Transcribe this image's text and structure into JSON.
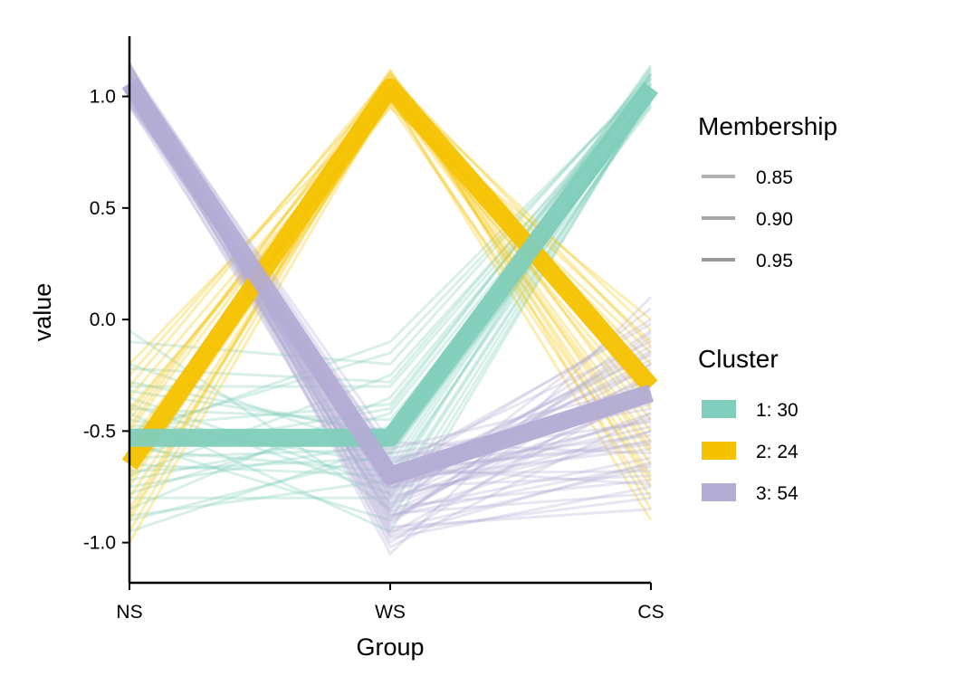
{
  "chart_data": {
    "type": "line",
    "categories": [
      "NS",
      "WS",
      "CS"
    ],
    "xlabel": "Group",
    "ylabel": "value",
    "ylim": [
      -1.18,
      1.27
    ],
    "yticks": [
      -1.0,
      -0.5,
      0.0,
      0.5,
      1.0
    ],
    "ytick_labels": [
      "-1.0",
      "-0.5",
      "0.0",
      "0.5",
      "1.0"
    ],
    "grid": false,
    "legend_position": "right",
    "membership_legend": {
      "title": "Membership",
      "entries": [
        "0.85",
        "0.90",
        "0.95"
      ],
      "colors": [
        "#b3b3b3",
        "#a6a6a6",
        "#999999"
      ]
    },
    "cluster_legend": {
      "title": "Cluster",
      "entries": [
        "1: 30",
        "2: 24",
        "3: 54"
      ]
    },
    "series": [
      {
        "name": "1: 30",
        "color": "#7fcdbb",
        "count": 30,
        "centroid": [
          -0.53,
          -0.53,
          1.04
        ],
        "profile": [
          [
            -0.05,
            -0.85,
            1.0
          ],
          [
            -0.1,
            -0.2,
            1.1
          ],
          [
            -0.2,
            -0.6,
            0.95
          ],
          [
            -0.3,
            -0.3,
            1.05
          ],
          [
            -0.35,
            -0.75,
            1.1
          ],
          [
            -0.4,
            -0.45,
            0.98
          ],
          [
            -0.45,
            -0.65,
            1.03
          ],
          [
            -0.5,
            -0.15,
            1.08
          ],
          [
            -0.55,
            -0.9,
            1.0
          ],
          [
            -0.6,
            -0.4,
            1.12
          ],
          [
            -0.65,
            -0.7,
            0.97
          ],
          [
            -0.7,
            -0.25,
            1.05
          ],
          [
            -0.75,
            -0.55,
            1.1
          ],
          [
            -0.8,
            -0.8,
            1.0
          ],
          [
            -0.85,
            -0.35,
            1.06
          ],
          [
            -0.9,
            -0.6,
            0.99
          ],
          [
            -0.32,
            -0.5,
            1.14
          ],
          [
            -0.42,
            -0.95,
            1.02
          ],
          [
            -0.52,
            -0.1,
            1.07
          ],
          [
            -0.62,
            -0.58,
            1.11
          ],
          [
            -0.72,
            -0.48,
            0.96
          ],
          [
            -0.58,
            -0.68,
            1.04
          ],
          [
            -0.48,
            -0.38,
            1.09
          ],
          [
            -0.38,
            -0.78,
            1.0
          ],
          [
            -0.28,
            -0.52,
            1.13
          ],
          [
            -0.68,
            -0.62,
            1.01
          ],
          [
            -0.78,
            -0.42,
            1.06
          ],
          [
            -0.88,
            -0.72,
            1.03
          ],
          [
            -0.22,
            -0.28,
            1.08
          ],
          [
            -0.95,
            -0.56,
            1.0
          ]
        ]
      },
      {
        "name": "2: 24",
        "color": "#f5c200",
        "count": 24,
        "centroid": [
          -0.65,
          1.04,
          -0.3
        ],
        "profile": [
          [
            -0.2,
            1.0,
            -0.1
          ],
          [
            -0.3,
            1.1,
            -0.5
          ],
          [
            -0.4,
            0.95,
            0.0
          ],
          [
            -0.5,
            1.05,
            -0.7
          ],
          [
            -0.6,
            1.0,
            -0.2
          ],
          [
            -0.7,
            1.12,
            -0.85
          ],
          [
            -0.8,
            0.98,
            -0.4
          ],
          [
            -0.9,
            1.06,
            -0.05
          ],
          [
            -1.0,
            1.0,
            -0.6
          ],
          [
            -0.35,
            1.02,
            -0.3
          ],
          [
            -0.45,
            1.08,
            -0.75
          ],
          [
            -0.55,
            0.97,
            -0.15
          ],
          [
            -0.65,
            1.04,
            -0.55
          ],
          [
            -0.75,
            1.1,
            -0.25
          ],
          [
            -0.85,
            0.99,
            -0.8
          ],
          [
            -0.95,
            1.03,
            -0.35
          ],
          [
            -0.25,
            1.07,
            -0.65
          ],
          [
            -0.42,
            1.01,
            -0.45
          ],
          [
            -0.58,
            1.09,
            -0.12
          ],
          [
            -0.72,
            0.96,
            -0.72
          ],
          [
            -0.88,
            1.05,
            -0.28
          ],
          [
            -0.62,
            1.0,
            -0.9
          ],
          [
            -0.48,
            1.11,
            -0.38
          ],
          [
            -0.68,
            1.02,
            -0.58
          ]
        ]
      },
      {
        "name": "3: 54",
        "color": "#b3acd4",
        "count": 54,
        "centroid": [
          1.06,
          -0.7,
          -0.33
        ],
        "profile": [
          [
            1.15,
            -1.05,
            0.1
          ],
          [
            1.1,
            -0.95,
            -0.8
          ],
          [
            1.05,
            -0.85,
            0.05
          ],
          [
            1.0,
            -0.75,
            -0.7
          ],
          [
            0.95,
            -0.65,
            -0.1
          ],
          [
            1.12,
            -0.55,
            -0.6
          ],
          [
            1.08,
            -0.9,
            -0.2
          ],
          [
            1.02,
            -0.8,
            -0.5
          ],
          [
            0.98,
            -0.7,
            0.0
          ],
          [
            1.14,
            -0.6,
            -0.4
          ],
          [
            1.06,
            -1.0,
            -0.25
          ],
          [
            1.0,
            -0.88,
            -0.65
          ],
          [
            1.1,
            -0.78,
            -0.15
          ],
          [
            1.04,
            -0.68,
            -0.55
          ],
          [
            0.96,
            -0.58,
            -0.3
          ],
          [
            1.13,
            -0.98,
            -0.75
          ],
          [
            1.07,
            -0.83,
            -0.05
          ],
          [
            1.01,
            -0.73,
            -0.45
          ],
          [
            0.97,
            -0.63,
            -0.35
          ],
          [
            1.11,
            -0.93,
            -0.85
          ],
          [
            1.05,
            -0.71,
            -0.22
          ],
          [
            1.09,
            -0.86,
            -0.62
          ],
          [
            1.03,
            -0.76,
            -0.12
          ],
          [
            0.99,
            -0.66,
            -0.52
          ],
          [
            1.15,
            -1.02,
            -0.42
          ],
          [
            1.08,
            -0.81,
            -0.28
          ],
          [
            1.02,
            -0.69,
            -0.68
          ],
          [
            1.12,
            -0.91,
            -0.08
          ],
          [
            1.06,
            -0.74,
            -0.48
          ],
          [
            1.0,
            -0.64,
            -0.38
          ],
          [
            0.96,
            -0.87,
            -0.78
          ],
          [
            1.14,
            -0.79,
            -0.18
          ],
          [
            1.04,
            -0.72,
            -0.58
          ],
          [
            1.1,
            -0.96,
            -0.32
          ],
          [
            1.01,
            -0.67,
            -0.02
          ],
          [
            1.07,
            -0.84,
            -0.72
          ],
          [
            0.98,
            -0.77,
            -0.26
          ],
          [
            1.13,
            -0.62,
            -0.46
          ],
          [
            1.05,
            -0.94,
            -0.66
          ],
          [
            1.09,
            -0.73,
            -0.14
          ],
          [
            1.03,
            -0.82,
            -0.36
          ],
          [
            0.97,
            -0.68,
            -0.56
          ],
          [
            1.11,
            -0.89,
            -0.24
          ],
          [
            1.06,
            -0.75,
            -0.44
          ],
          [
            1.0,
            -0.97,
            -0.64
          ],
          [
            1.12,
            -0.71,
            -0.16
          ],
          [
            1.04,
            -0.86,
            -0.34
          ],
          [
            1.08,
            -0.79,
            -0.54
          ],
          [
            1.02,
            -0.66,
            -0.74
          ],
          [
            1.14,
            -0.92,
            -0.06
          ],
          [
            0.99,
            -0.83,
            -0.42
          ],
          [
            1.07,
            -0.7,
            -0.3
          ],
          [
            1.01,
            -0.88,
            -0.5
          ],
          [
            1.1,
            -0.76,
            -0.2
          ]
        ]
      }
    ]
  }
}
